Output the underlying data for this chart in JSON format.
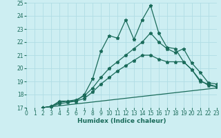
{
  "xlabel": "Humidex (Indice chaleur)",
  "xlim": [
    0,
    23
  ],
  "ylim": [
    17,
    25
  ],
  "yticks": [
    17,
    18,
    19,
    20,
    21,
    22,
    23,
    24,
    25
  ],
  "xticks": [
    0,
    1,
    2,
    3,
    4,
    5,
    6,
    7,
    8,
    9,
    10,
    11,
    12,
    13,
    14,
    15,
    16,
    17,
    18,
    19,
    20,
    21,
    22,
    23
  ],
  "background_color": "#cdeef2",
  "grid_color": "#b0dde4",
  "line_color": "#1a6b5a",
  "line_width": 0.9,
  "marker": "*",
  "marker_size": 3.5,
  "series": [
    {
      "x": [
        2,
        3,
        4,
        5,
        6,
        7,
        8,
        9,
        10,
        11,
        12,
        13,
        14,
        15,
        16,
        17,
        18,
        19,
        20,
        21,
        22,
        23
      ],
      "y": [
        17.0,
        17.1,
        17.5,
        17.5,
        17.5,
        18.0,
        19.2,
        21.3,
        22.5,
        22.3,
        23.7,
        22.2,
        23.7,
        24.8,
        22.7,
        21.6,
        21.5,
        20.5,
        19.9,
        19.0,
        18.8,
        18.6
      ],
      "has_markers": true
    },
    {
      "x": [
        2,
        3,
        4,
        5,
        6,
        7,
        8,
        9,
        10,
        11,
        12,
        13,
        14,
        15,
        16,
        17,
        18,
        19,
        20,
        21,
        22,
        23
      ],
      "y": [
        17.0,
        17.1,
        17.4,
        17.5,
        17.6,
        17.9,
        18.5,
        19.3,
        20.0,
        20.5,
        21.0,
        21.5,
        22.0,
        22.7,
        22.0,
        21.5,
        21.2,
        21.5,
        20.4,
        19.7,
        18.9,
        18.8
      ],
      "has_markers": true
    },
    {
      "x": [
        2,
        3,
        4,
        5,
        6,
        7,
        8,
        9,
        10,
        11,
        12,
        13,
        14,
        15,
        16,
        17,
        18,
        19,
        20,
        21,
        22,
        23
      ],
      "y": [
        17.0,
        17.1,
        17.3,
        17.4,
        17.5,
        17.7,
        18.2,
        18.8,
        19.3,
        19.8,
        20.2,
        20.6,
        21.0,
        21.0,
        20.7,
        20.5,
        20.5,
        20.5,
        19.9,
        19.1,
        18.7,
        18.6
      ],
      "has_markers": true
    },
    {
      "x": [
        2,
        23
      ],
      "y": [
        17.0,
        18.5
      ],
      "has_markers": false
    }
  ]
}
